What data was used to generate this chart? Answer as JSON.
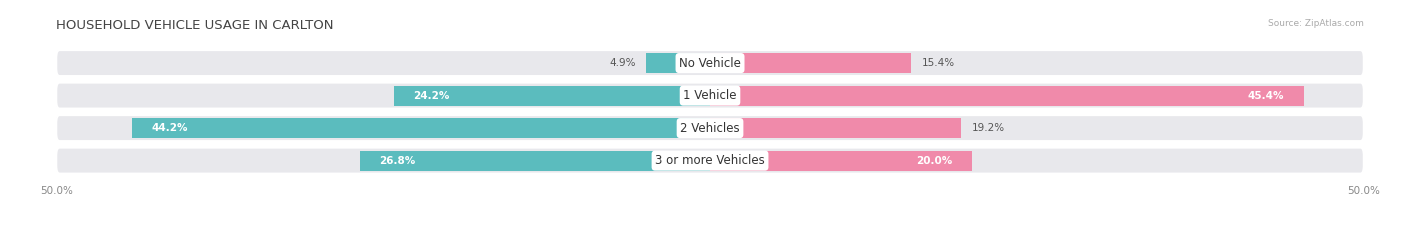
{
  "title": "HOUSEHOLD VEHICLE USAGE IN CARLTON",
  "source": "Source: ZipAtlas.com",
  "categories": [
    "No Vehicle",
    "1 Vehicle",
    "2 Vehicles",
    "3 or more Vehicles"
  ],
  "owner_values": [
    4.9,
    24.2,
    44.2,
    26.8
  ],
  "renter_values": [
    15.4,
    45.4,
    19.2,
    20.0
  ],
  "owner_color": "#5bbcbe",
  "renter_color": "#f08aaa",
  "bar_bg_color": "#e8e8ec",
  "axis_limit": 50.0,
  "bar_height": 0.62,
  "title_fontsize": 9.5,
  "label_fontsize": 7.5,
  "tick_fontsize": 7.5,
  "legend_fontsize": 8,
  "category_fontsize": 8.5
}
